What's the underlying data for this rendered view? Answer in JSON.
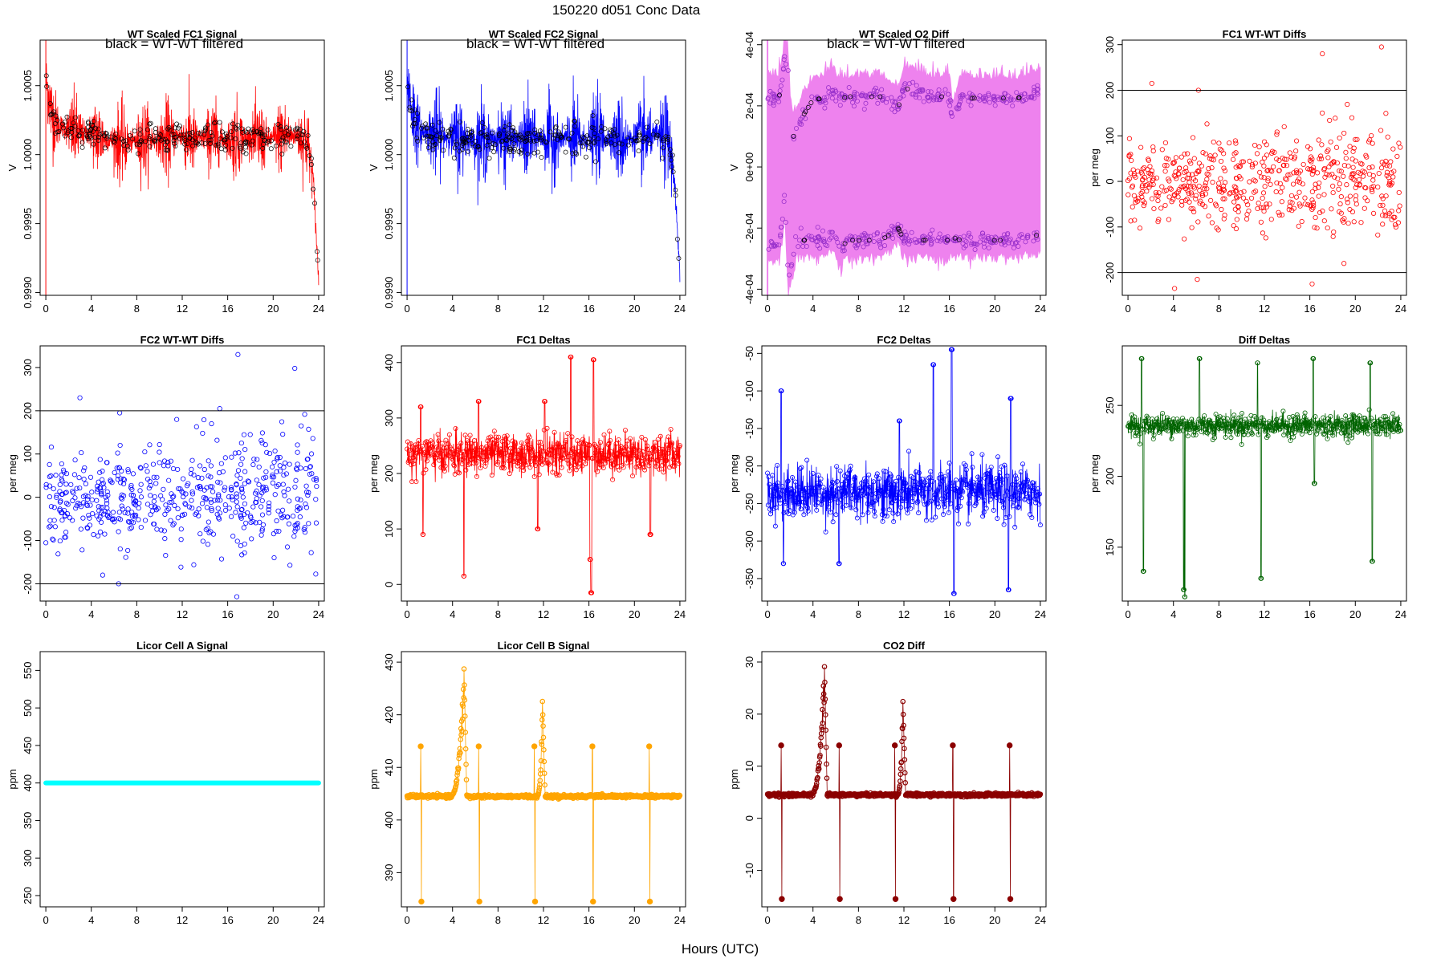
{
  "figure": {
    "title": "150220    d051    Conc Data",
    "xlabel": "Hours (UTC)"
  },
  "chart_data": [
    {
      "type": "line",
      "title": "WT Scaled FC1 Signal",
      "ylabel": "V",
      "annotation": "black = WT-WT filtered",
      "color": "#ff0000",
      "style": "noise",
      "xlim": [
        -0.5,
        24.5
      ],
      "ylim": [
        0.99898,
        1.00083
      ],
      "xticks": [
        0,
        4,
        8,
        12,
        16,
        20,
        24
      ],
      "yticks": [
        0.999,
        0.9995,
        1.0,
        1.0005
      ],
      "ytick_labels": [
        "0.9990",
        "0.9995",
        "1.0000",
        "1.0005"
      ],
      "hlines": [],
      "data": {
        "x": [
          0,
          0.5,
          1,
          2,
          3,
          4,
          5,
          6,
          7,
          8,
          9,
          10,
          11,
          12,
          13,
          14,
          15,
          16,
          17,
          18,
          19,
          20,
          21,
          22,
          22.5,
          23,
          23.5,
          24
        ],
        "center": [
          1.00055,
          1.0003,
          1.00022,
          1.00018,
          1.00015,
          1.00016,
          1.00012,
          1.0001,
          1.00008,
          1.0001,
          1.00012,
          1.0001,
          1.00012,
          1.00014,
          1.0001,
          1.00012,
          1.00012,
          1.0001,
          1.00012,
          1.00012,
          1.0001,
          1.00012,
          1.00014,
          1.00014,
          1.00012,
          1.0001,
          0.99985,
          0.9991
        ],
        "spread": 0.0001
      }
    },
    {
      "type": "line",
      "title": "WT Scaled FC2 Signal",
      "ylabel": "V",
      "annotation": "black = WT-WT filtered",
      "color": "#0000ff",
      "style": "noise",
      "xlim": [
        -0.5,
        24.5
      ],
      "ylim": [
        0.99898,
        1.00083
      ],
      "xticks": [
        0,
        4,
        8,
        12,
        16,
        20,
        24
      ],
      "yticks": [
        0.999,
        0.9995,
        1.0,
        1.0005
      ],
      "ytick_labels": [
        "0.9990",
        "0.9995",
        "1.0000",
        "1.0005"
      ],
      "hlines": [],
      "data": {
        "x": [
          0,
          0.5,
          1,
          2,
          3,
          4,
          5,
          6,
          7,
          8,
          9,
          10,
          11,
          12,
          13,
          14,
          15,
          16,
          17,
          18,
          19,
          20,
          21,
          22,
          22.5,
          23,
          23.5,
          24
        ],
        "center": [
          1.00055,
          1.0003,
          1.00018,
          1.00015,
          1.00014,
          1.00012,
          1.00012,
          1.0001,
          1.0001,
          1.00012,
          1.00012,
          1.0001,
          1.00012,
          1.00012,
          1.0001,
          1.00012,
          1.0001,
          1.00012,
          1.00014,
          1.00012,
          1.0001,
          1.00012,
          1.00012,
          1.00014,
          1.00012,
          1.0001,
          0.99985,
          0.9991
        ],
        "spread": 0.00011
      }
    },
    {
      "type": "line",
      "title": "WT Scaled O2 Diff",
      "ylabel": "V",
      "annotation": "black = WT-WT filtered",
      "color": "#ee82ee",
      "style": "band",
      "xlim": [
        -0.5,
        24.5
      ],
      "ylim": [
        -0.00042,
        0.000415
      ],
      "xticks": [
        0,
        4,
        8,
        12,
        16,
        20,
        24
      ],
      "yticks": [
        -0.0004,
        -0.0002,
        0,
        0.0002,
        0.0004
      ],
      "ytick_labels": [
        "-4e-04",
        "-2e-04",
        "0e+00",
        "2e-04",
        "4e-04"
      ],
      "hlines": [],
      "data": {
        "x": [
          0,
          0.5,
          1,
          1.3,
          1.5,
          1.8,
          2,
          2.3,
          2.6,
          3,
          4,
          5,
          5.5,
          6,
          6.3,
          7,
          8,
          10,
          11.5,
          12,
          14,
          16,
          16.3,
          17,
          19,
          21,
          22,
          24
        ],
        "upper": [
          0.000225,
          0.000225,
          0.000225,
          0.00028,
          0.00037,
          0.00032,
          0.00017,
          0.0001,
          0.000125,
          0.00016,
          0.00022,
          0.000225,
          0.00025,
          0.00024,
          0.00022,
          0.00023,
          0.00023,
          0.00023,
          0.000195,
          0.00026,
          0.00023,
          0.00023,
          0.00014,
          0.000225,
          0.000225,
          0.000225,
          0.000225,
          0.000245
        ],
        "lower": [
          -0.00026,
          -0.00025,
          -0.00025,
          -0.00018,
          -0.0001,
          -0.00035,
          -0.000345,
          -0.00028,
          -0.00024,
          -0.00024,
          -0.00024,
          -0.00024,
          -0.00022,
          -0.00024,
          -0.00028,
          -0.00024,
          -0.00024,
          -0.00024,
          -0.0002,
          -0.00024,
          -0.00024,
          -0.00024,
          -0.00023,
          -0.00024,
          -0.00024,
          -0.00024,
          -0.00024,
          -0.00022
        ]
      }
    },
    {
      "type": "scatter",
      "title": "FC1 WT-WT Diffs",
      "ylabel": "per meg",
      "annotation": "",
      "color": "#ff0000",
      "style": "scatter",
      "xlim": [
        -0.5,
        24.5
      ],
      "ylim": [
        -250,
        310
      ],
      "xticks": [
        0,
        4,
        8,
        12,
        16,
        20,
        24
      ],
      "yticks": [
        -200,
        -100,
        0,
        100,
        200,
        300
      ],
      "ytick_labels": [
        "-200",
        "-100",
        "0",
        "100",
        "200",
        "300"
      ],
      "hlines": [
        -200,
        200
      ],
      "data": {
        "n": 560,
        "center": 0,
        "sd": 55,
        "outliers": [
          [
            2.1,
            215
          ],
          [
            6.2,
            200
          ],
          [
            6.1,
            -215
          ],
          [
            17.1,
            280
          ],
          [
            16.2,
            -225
          ],
          [
            19.0,
            -180
          ],
          [
            22.3,
            295
          ],
          [
            4.1,
            -235
          ]
        ]
      }
    },
    {
      "type": "scatter",
      "title": "FC2 WT-WT Diffs",
      "ylabel": "per meg",
      "annotation": "",
      "color": "#0000ff",
      "style": "scatter",
      "xlim": [
        -0.5,
        24.5
      ],
      "ylim": [
        -240,
        350
      ],
      "xticks": [
        0,
        4,
        8,
        12,
        16,
        20,
        24
      ],
      "yticks": [
        -200,
        -100,
        0,
        100,
        200,
        300
      ],
      "ytick_labels": [
        "-200",
        "-100",
        "0",
        "100",
        "200",
        "300"
      ],
      "hlines": [
        -200,
        200
      ],
      "data": {
        "n": 560,
        "center": 0,
        "sd": 60,
        "outliers": [
          [
            3.0,
            230
          ],
          [
            6.5,
            195
          ],
          [
            6.4,
            -200
          ],
          [
            15.3,
            205
          ],
          [
            16.9,
            330
          ],
          [
            16.8,
            -230
          ],
          [
            21.9,
            298
          ],
          [
            5.0,
            -180
          ]
        ]
      }
    },
    {
      "type": "line",
      "title": "FC1 Deltas",
      "ylabel": "per meg",
      "annotation": "",
      "color": "#ff0000",
      "style": "deltas",
      "xlim": [
        -0.5,
        24.5
      ],
      "ylim": [
        -30,
        430
      ],
      "xticks": [
        0,
        4,
        8,
        12,
        16,
        20,
        24
      ],
      "yticks": [
        0,
        100,
        200,
        300,
        400
      ],
      "ytick_labels": [
        "0",
        "100",
        "200",
        "300",
        "400"
      ],
      "hlines": [],
      "data": {
        "baseline": 235,
        "noise": 18,
        "events": [
          [
            1.2,
            320
          ],
          [
            1.4,
            90
          ],
          [
            5.0,
            15
          ],
          [
            6.3,
            330
          ],
          [
            11.5,
            100
          ],
          [
            12.1,
            330
          ],
          [
            14.4,
            410
          ],
          [
            16.1,
            45
          ],
          [
            16.2,
            -15
          ],
          [
            16.4,
            405
          ],
          [
            21.4,
            90
          ]
        ]
      }
    },
    {
      "type": "line",
      "title": "FC2 Deltas",
      "ylabel": "per meg",
      "annotation": "",
      "color": "#0000ff",
      "style": "deltas",
      "xlim": [
        -0.5,
        24.5
      ],
      "ylim": [
        -380,
        -40
      ],
      "xticks": [
        0,
        4,
        8,
        12,
        16,
        20,
        24
      ],
      "yticks": [
        -350,
        -300,
        -250,
        -200,
        -150,
        -100,
        -50
      ],
      "ytick_labels": [
        "-350",
        "-300",
        "-250",
        "-200",
        "-150",
        "-100",
        "-50"
      ],
      "hlines": [],
      "data": {
        "baseline": -235,
        "noise": 18,
        "events": [
          [
            1.2,
            -100
          ],
          [
            1.4,
            -330
          ],
          [
            6.3,
            -330
          ],
          [
            11.6,
            -140
          ],
          [
            14.6,
            -65
          ],
          [
            16.2,
            -45
          ],
          [
            16.4,
            -370
          ],
          [
            21.2,
            -365
          ],
          [
            21.4,
            -110
          ]
        ]
      }
    },
    {
      "type": "line",
      "title": "Diff Deltas",
      "ylabel": "per meg",
      "annotation": "",
      "color": "#006400",
      "style": "deltas",
      "xlim": [
        -0.5,
        24.5
      ],
      "ylim": [
        112,
        292
      ],
      "xticks": [
        0,
        4,
        8,
        12,
        16,
        20,
        24
      ],
      "yticks": [
        150,
        200,
        250
      ],
      "ytick_labels": [
        "150",
        "200",
        "250"
      ],
      "hlines": [],
      "data": {
        "baseline": 236,
        "noise": 4,
        "events": [
          [
            1.2,
            283
          ],
          [
            1.35,
            133
          ],
          [
            4.9,
            120
          ],
          [
            5.0,
            115
          ],
          [
            6.3,
            283
          ],
          [
            11.4,
            280
          ],
          [
            11.7,
            128
          ],
          [
            16.3,
            283
          ],
          [
            16.4,
            195
          ],
          [
            21.3,
            280
          ],
          [
            21.5,
            140
          ]
        ]
      }
    },
    {
      "type": "line",
      "title": "Licor Cell A Signal",
      "ylabel": "ppm",
      "annotation": "",
      "color": "#00ffff",
      "style": "flat",
      "xlim": [
        -0.5,
        24.5
      ],
      "ylim": [
        235,
        575
      ],
      "xticks": [
        0,
        4,
        8,
        12,
        16,
        20,
        24
      ],
      "yticks": [
        250,
        300,
        350,
        400,
        450,
        500,
        550
      ],
      "ytick_labels": [
        "250",
        "300",
        "350",
        "400",
        "450",
        "500",
        "550"
      ],
      "hlines": [],
      "data": {
        "value": 400
      }
    },
    {
      "type": "line",
      "title": "Licor Cell B Signal",
      "ylabel": "ppm",
      "annotation": "",
      "color": "#ffa500",
      "style": "co2",
      "xlim": [
        -0.5,
        24.5
      ],
      "ylim": [
        383.5,
        432
      ],
      "xticks": [
        0,
        4,
        8,
        12,
        16,
        20,
        24
      ],
      "yticks": [
        390,
        400,
        410,
        420,
        430
      ],
      "ytick_labels": [
        "390",
        "400",
        "410",
        "420",
        "430"
      ],
      "hlines": [],
      "data": {
        "baseline": 404.5,
        "peaks": [
          [
            5.0,
            430,
            1.3
          ],
          [
            11.9,
            423,
            0.5
          ]
        ],
        "spikes": [
          [
            1.2,
            414,
            384.5
          ],
          [
            6.3,
            414,
            384.5
          ],
          [
            11.2,
            414,
            384.5
          ],
          [
            16.3,
            414,
            384.5
          ],
          [
            21.3,
            414,
            384.5
          ]
        ]
      }
    },
    {
      "type": "line",
      "title": "CO2 Diff",
      "ylabel": "ppm",
      "annotation": "",
      "color": "#8b0000",
      "style": "co2",
      "xlim": [
        -0.5,
        24.5
      ],
      "ylim": [
        -17,
        32
      ],
      "xticks": [
        0,
        4,
        8,
        12,
        16,
        20,
        24
      ],
      "yticks": [
        -10,
        0,
        10,
        20,
        30
      ],
      "ytick_labels": [
        "-10",
        "0",
        "10",
        "20",
        "30"
      ],
      "hlines": [],
      "data": {
        "baseline": 4.5,
        "peaks": [
          [
            5.0,
            30,
            1.3
          ],
          [
            11.9,
            23,
            0.5
          ]
        ],
        "spikes": [
          [
            1.2,
            14,
            -15.5
          ],
          [
            6.3,
            14,
            -15.5
          ],
          [
            11.2,
            14,
            -15.5
          ],
          [
            16.3,
            14,
            -15.5
          ],
          [
            21.3,
            14,
            -15.5
          ]
        ]
      }
    }
  ]
}
